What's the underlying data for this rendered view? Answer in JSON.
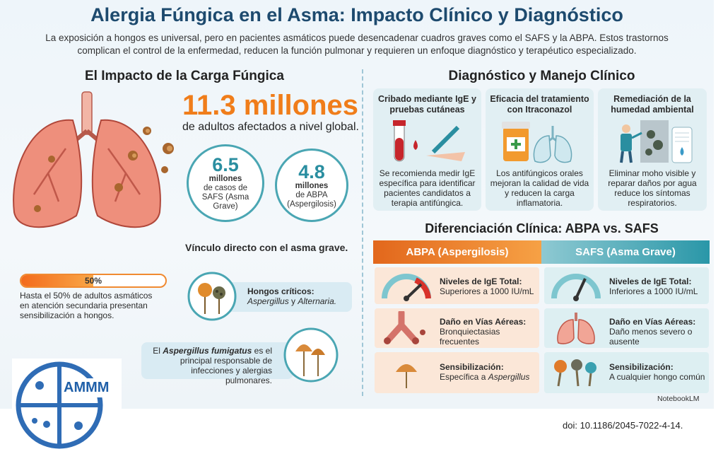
{
  "header": {
    "title": "Alergia Fúngica en el Asma: Impacto Clínico y Diagnóstico",
    "subtitle": "La exposición a hongos es universal, pero en pacientes asmáticos puede desencadenar cuadros graves como el SAFS y la ABPA. Estos trastornos complican el control de la enfermedad, reducen la función pulmonar y requieren un enfoque diagnóstico y terapéutico especializado."
  },
  "impact": {
    "heading": "El Impacto de la Carga Fúngica",
    "big_number": "11.3 millones",
    "big_caption": "de adultos afectados a nivel global.",
    "circles": [
      {
        "number": "6.5",
        "unit": "millones",
        "text": "de casos de SAFS (Asma Grave)"
      },
      {
        "number": "4.8",
        "unit": "millones",
        "text": "de ABPA (Aspergilosis)"
      }
    ],
    "link_text": "Vínculo directo con el asma grave.",
    "progress": {
      "value": 50,
      "label": "50%"
    },
    "progress_text": "Hasta el 50% de adultos asmáticos en atención secundaria presentan sensibilización a hongos.",
    "fungi_critical": {
      "label": "Hongos críticos:",
      "species": [
        "Aspergillus",
        "Alternaria."
      ],
      "conjunction": "y"
    },
    "fumigatus": {
      "before": "El",
      "species": "Aspergillus fumigatus",
      "after": "es el principal responsable de infecciones y alergias pulmonares."
    }
  },
  "management": {
    "heading": "Diagnóstico y Manejo Clínico",
    "cards": [
      {
        "title": "Cribado mediante IgE y pruebas cutáneas",
        "text": "Se recomienda medir IgE específica para identificar pacientes candidatos a terapia antifúngica."
      },
      {
        "title": "Eficacia del tratamiento con Itraconazol",
        "text": "Los antifúngicos orales mejoran la calidad de vida y reducen la carga inflamatoria."
      },
      {
        "title": "Remediación de la humedad ambiental",
        "text": "Eliminar moho visible y reparar daños por agua reduce los síntomas respiratorios."
      }
    ]
  },
  "comparison": {
    "heading": "Diferenciación Clínica: ABPA vs. SAFS",
    "columns": [
      "ABPA (Aspergilosis)",
      "SAFS (Asma Grave)"
    ],
    "rows": [
      [
        {
          "label": "Niveles de IgE Total:",
          "value": "Superiores a 1000 IU/mL"
        },
        {
          "label": "Niveles de IgE Total:",
          "value": "Inferiores a 1000 IU/mL"
        }
      ],
      [
        {
          "label": "Daño en Vías Aéreas:",
          "value": "Bronquiectasias frecuentes"
        },
        {
          "label": "Daño en Vías Aéreas:",
          "value": "Daño menos severo o ausente"
        }
      ],
      [
        {
          "label": "Sensibilización:",
          "value": "Específica a",
          "value_italic": "Aspergillus"
        },
        {
          "label": "Sensibilización:",
          "value": "A cualquier hongo común"
        }
      ]
    ]
  },
  "footer": {
    "brand": "NotebookLM",
    "logo": "AMMM",
    "doi": "doi: 10.1186/2045-7022-4-14."
  }
}
